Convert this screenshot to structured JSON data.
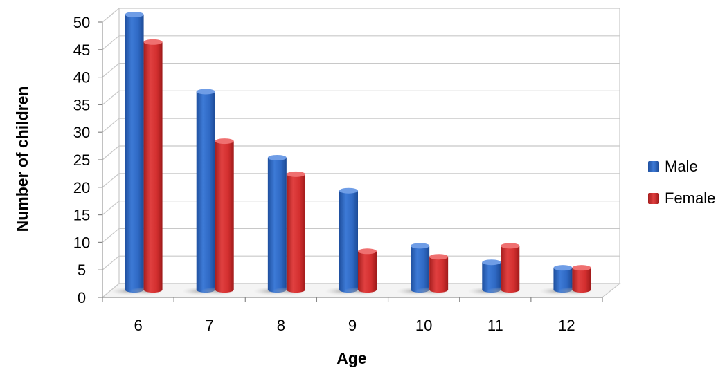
{
  "chart_data": {
    "type": "bar",
    "xlabel": "Age",
    "ylabel": "Number of children",
    "categories": [
      "6",
      "7",
      "8",
      "9",
      "10",
      "11",
      "12"
    ],
    "series": [
      {
        "name": "Male",
        "values": [
          50,
          36,
          24,
          18,
          8,
          5,
          4
        ]
      },
      {
        "name": "Female",
        "values": [
          45,
          27,
          21,
          7,
          6,
          8,
          4
        ]
      }
    ],
    "ylim": [
      0,
      50
    ],
    "yticks": [
      "0",
      "5",
      "10",
      "15",
      "20",
      "25",
      "30",
      "35",
      "40",
      "45",
      "50"
    ],
    "grid": true,
    "legend_position": "right",
    "colors": {
      "male": "#2f69c4",
      "male_dark": "#1c4a95",
      "male_light": "#6f9de6",
      "female": "#d32f2f",
      "female_dark": "#9e1a1a",
      "female_light": "#ef7070",
      "grid": "#c8c8c8",
      "floor": "#dcdcdc"
    }
  }
}
